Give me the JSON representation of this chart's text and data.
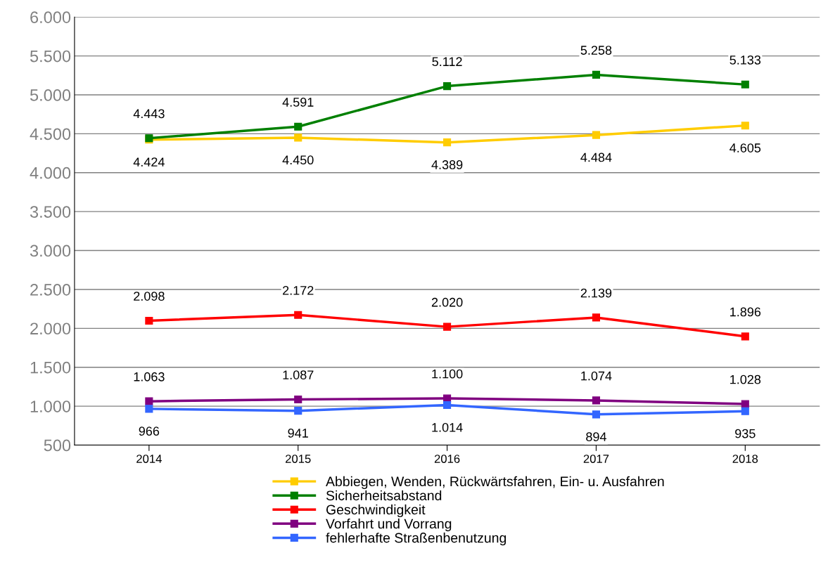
{
  "chart_data": {
    "type": "line",
    "categories": [
      "2014",
      "2015",
      "2016",
      "2017",
      "2018"
    ],
    "series": [
      {
        "name": "Abbiegen, Wenden, Rückwärtsfahren, Ein- u. Ausfahren",
        "color": "#ffcc00",
        "values": [
          4424,
          4450,
          4389,
          4484,
          4605
        ],
        "value_labels": [
          "4.424",
          "4.450",
          "4.389",
          "4.484",
          "4.605"
        ]
      },
      {
        "name": "Sicherheitsabstand",
        "color": "#008000",
        "values": [
          4443,
          4591,
          5112,
          5258,
          5133
        ],
        "value_labels": [
          "4.443",
          "4.591",
          "5.112",
          "5.258",
          "5.133"
        ]
      },
      {
        "name": "Geschwindigkeit",
        "color": "#ff0000",
        "values": [
          2098,
          2172,
          2020,
          2139,
          1896
        ],
        "value_labels": [
          "2.098",
          "2.172",
          "2.020",
          "2.139",
          "1.896"
        ]
      },
      {
        "name": "Vorfahrt und Vorrang",
        "color": "#800080",
        "values": [
          1063,
          1087,
          1100,
          1074,
          1028
        ],
        "value_labels": [
          "1.063",
          "1.087",
          "1.100",
          "1.074",
          "1.028"
        ]
      },
      {
        "name": "fehlerhafte Straßenbenutzung",
        "color": "#3366ff",
        "values": [
          966,
          941,
          1014,
          894,
          935
        ],
        "value_labels": [
          "966",
          "941",
          "1.014",
          "894",
          "935"
        ]
      }
    ],
    "ylim": [
      500,
      6000
    ],
    "yticks": [
      {
        "value": 500,
        "label": "500"
      },
      {
        "value": 1000,
        "label": "1.000"
      },
      {
        "value": 1500,
        "label": "1.500"
      },
      {
        "value": 2000,
        "label": "2.000"
      },
      {
        "value": 2500,
        "label": "2.500"
      },
      {
        "value": 3000,
        "label": "3.000"
      },
      {
        "value": 3500,
        "label": "3.500"
      },
      {
        "value": 4000,
        "label": "4.000"
      },
      {
        "value": 4500,
        "label": "4.500"
      },
      {
        "value": 5000,
        "label": "5.000"
      },
      {
        "value": 5500,
        "label": "5.500"
      },
      {
        "value": 6000,
        "label": "6.000"
      }
    ],
    "grid": "y",
    "legend": "bottom",
    "marker": "square",
    "line_style": "solid"
  }
}
